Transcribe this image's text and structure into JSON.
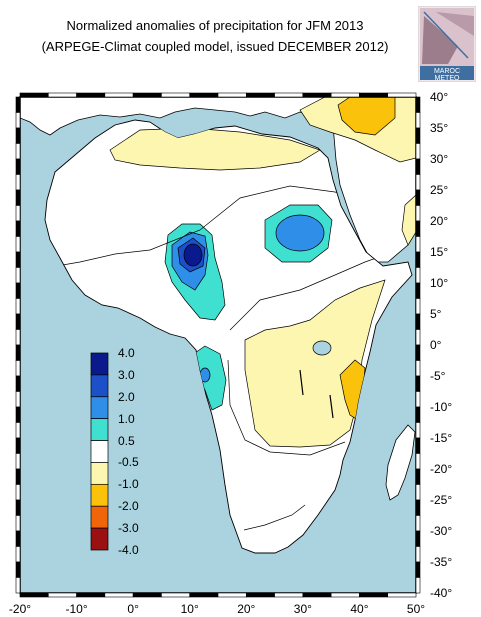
{
  "title_line1": "Normalized anomalies of precipitation for JFM 2013",
  "title_line2": "(ARPEGE-Climat coupled model, issued DECEMBER 2012)",
  "logo": {
    "text_line1": "MAROC",
    "text_line2": "METEO",
    "colors": [
      "#f2e6ea",
      "#7a5a6a",
      "#3f6fa0"
    ]
  },
  "colors": {
    "ocean": "#aad3df",
    "land": "#ffffff",
    "coast": "#000000"
  },
  "lat_labels": [
    "40°",
    "35°",
    "30°",
    "25°",
    "20°",
    "15°",
    "10°",
    "5°",
    "0°",
    "-5°",
    "-10°",
    "-15°",
    "-20°",
    "-25°",
    "-30°",
    "-35°",
    "-40°"
  ],
  "lon_labels": [
    "-20°",
    "-10°",
    "0°",
    "10°",
    "20°",
    "30°",
    "40°",
    "50°"
  ],
  "legend": {
    "labels": [
      "4.0",
      "3.0",
      "2.0",
      "1.0",
      "0.5",
      "-0.5",
      "-1.0",
      "-2.0",
      "-3.0",
      "-4.0"
    ],
    "bins": [
      {
        "range": "3.0 to 4.0",
        "color": "#0a1a8c"
      },
      {
        "range": "2.0 to 3.0",
        "color": "#1c50c8"
      },
      {
        "range": "1.0 to 2.0",
        "color": "#2f8ee8"
      },
      {
        "range": "0.5 to 1.0",
        "color": "#3fe0d0"
      },
      {
        "range": "-0.5 to 0.5",
        "color": "#ffffff"
      },
      {
        "range": "-1.0 to -0.5",
        "color": "#fdf6b0"
      },
      {
        "range": "-2.0 to -1.0",
        "color": "#fac20a"
      },
      {
        "range": "-3.0 to -2.0",
        "color": "#f0640a"
      },
      {
        "range": "-4.0 to -3.0",
        "color": "#9b1010"
      }
    ]
  }
}
